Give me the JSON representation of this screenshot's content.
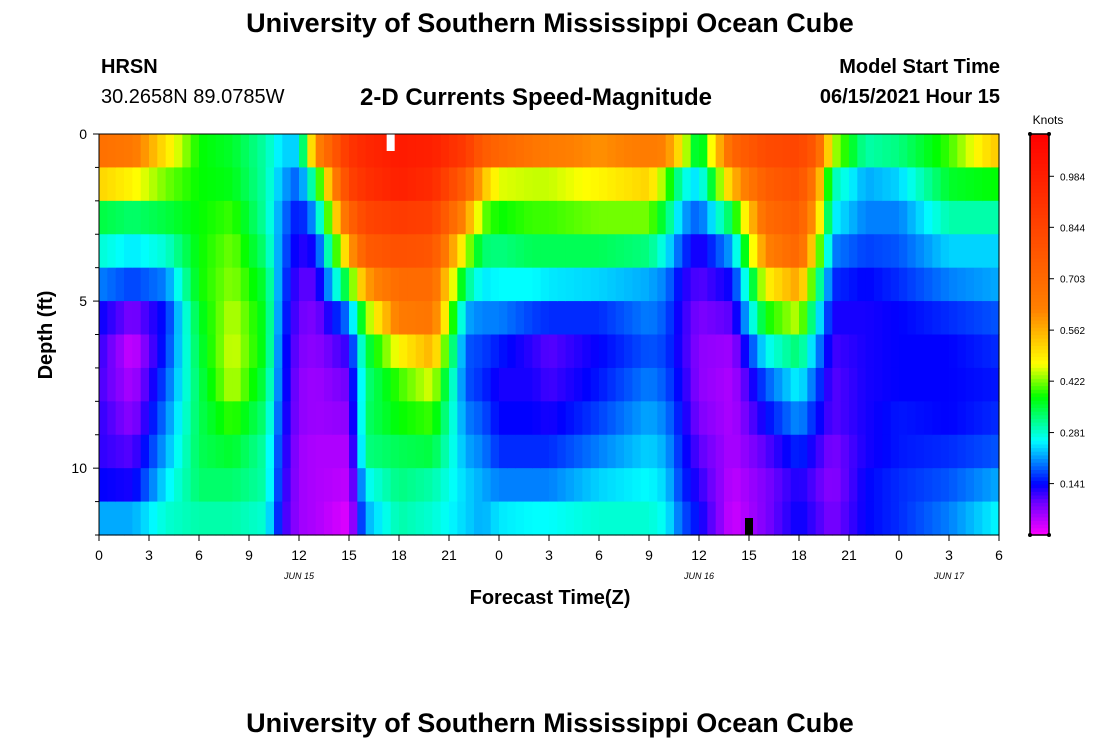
{
  "page": {
    "top_title": "University of Southern Mississippi Ocean Cube",
    "bottom_title": "University of Southern Mississippi Ocean Cube",
    "station": "HRSN",
    "coordinates": "30.2658N  89.0785W",
    "subtitle": "2-D Currents Speed-Magnitude",
    "model_start_label": "Model Start Time",
    "model_start_value": "06/15/2021 Hour 15"
  },
  "chart_data": {
    "type": "heatmap",
    "title": "2-D Currents Speed-Magnitude",
    "xlabel": "Forecast Time(Z)",
    "ylabel": "Depth (ft)",
    "x_hours": [
      0,
      54
    ],
    "x_tick_labels": [
      "0",
      "3",
      "6",
      "9",
      "12",
      "15",
      "18",
      "21",
      "0",
      "3",
      "6",
      "9",
      "12",
      "15",
      "18",
      "21",
      "0",
      "3",
      "6"
    ],
    "date_labels": [
      {
        "text": "JUN 15",
        "hour": 12
      },
      {
        "text": "JUN 16",
        "hour": 36
      },
      {
        "text": "JUN 17",
        "hour": 51
      }
    ],
    "ylim": [
      0,
      12
    ],
    "y_tick_labels": [
      {
        "value": 0,
        "label": "0"
      },
      {
        "value": 5,
        "label": "5"
      },
      {
        "value": 10,
        "label": "10"
      }
    ],
    "colorbar": {
      "unit": "Knots",
      "min": 0.0,
      "max": 1.1,
      "tick_values": [
        0.141,
        0.281,
        0.422,
        0.562,
        0.703,
        0.844,
        0.984
      ],
      "tick_labels": [
        "0.141",
        "0.281",
        "0.422",
        "0.562",
        "0.703",
        "0.844",
        "0.984"
      ]
    },
    "markers": [
      {
        "hour": 17.5,
        "position": "surface",
        "color": "#ffffff"
      },
      {
        "hour": 39,
        "position": "bottom",
        "color": "#000000"
      }
    ],
    "depths_ft": [
      0.5,
      1.5,
      2.5,
      3.5,
      4.5,
      5.5,
      6.5,
      7.5,
      8.5,
      9.5,
      10.5,
      11.5
    ],
    "profiles": [
      {
        "hour": 0,
        "speeds": [
          0.68,
          0.52,
          0.35,
          0.28,
          0.2,
          0.14,
          0.12,
          0.11,
          0.12,
          0.12,
          0.14,
          0.22
        ]
      },
      {
        "hour": 2,
        "speeds": [
          0.65,
          0.48,
          0.33,
          0.25,
          0.17,
          0.08,
          0.03,
          0.05,
          0.07,
          0.1,
          0.13,
          0.22
        ]
      },
      {
        "hour": 4,
        "speeds": [
          0.5,
          0.42,
          0.35,
          0.28,
          0.2,
          0.15,
          0.16,
          0.18,
          0.2,
          0.22,
          0.25,
          0.28
        ]
      },
      {
        "hour": 6,
        "speeds": [
          0.38,
          0.38,
          0.38,
          0.38,
          0.38,
          0.36,
          0.35,
          0.34,
          0.34,
          0.34,
          0.33,
          0.3
        ]
      },
      {
        "hour": 8,
        "speeds": [
          0.36,
          0.37,
          0.4,
          0.42,
          0.43,
          0.45,
          0.46,
          0.45,
          0.4,
          0.36,
          0.33,
          0.3
        ]
      },
      {
        "hour": 10,
        "speeds": [
          0.3,
          0.3,
          0.3,
          0.32,
          0.35,
          0.36,
          0.36,
          0.34,
          0.32,
          0.3,
          0.3,
          0.28
        ]
      },
      {
        "hour": 11,
        "speeds": [
          0.24,
          0.22,
          0.2,
          0.19,
          0.18,
          0.17,
          0.16,
          0.16,
          0.15,
          0.14,
          0.13,
          0.12
        ]
      },
      {
        "hour": 12,
        "speeds": [
          0.24,
          0.18,
          0.14,
          0.12,
          0.1,
          0.09,
          0.08,
          0.07,
          0.07,
          0.06,
          0.06,
          0.06
        ]
      },
      {
        "hour": 13,
        "speeds": [
          0.6,
          0.34,
          0.22,
          0.14,
          0.1,
          0.08,
          0.07,
          0.06,
          0.06,
          0.05,
          0.05,
          0.05
        ]
      },
      {
        "hour": 15,
        "speeds": [
          0.9,
          0.85,
          0.72,
          0.56,
          0.38,
          0.2,
          0.12,
          0.09,
          0.07,
          0.05,
          0.04,
          0.02
        ]
      },
      {
        "hour": 16,
        "speeds": [
          0.95,
          0.92,
          0.84,
          0.76,
          0.58,
          0.42,
          0.34,
          0.32,
          0.33,
          0.32,
          0.26,
          0.22
        ]
      },
      {
        "hour": 18,
        "speeds": [
          1.0,
          0.98,
          0.88,
          0.8,
          0.7,
          0.64,
          0.48,
          0.4,
          0.38,
          0.34,
          0.32,
          0.3
        ]
      },
      {
        "hour": 20,
        "speeds": [
          0.98,
          0.94,
          0.86,
          0.78,
          0.7,
          0.66,
          0.56,
          0.46,
          0.4,
          0.35,
          0.3,
          0.28
        ]
      },
      {
        "hour": 22,
        "speeds": [
          0.88,
          0.74,
          0.6,
          0.45,
          0.32,
          0.22,
          0.18,
          0.18,
          0.2,
          0.22,
          0.24,
          0.24
        ]
      },
      {
        "hour": 23,
        "speeds": [
          0.76,
          0.55,
          0.42,
          0.33,
          0.25,
          0.2,
          0.17,
          0.16,
          0.18,
          0.2,
          0.22,
          0.22
        ]
      },
      {
        "hour": 24,
        "speeds": [
          0.72,
          0.46,
          0.38,
          0.32,
          0.26,
          0.2,
          0.15,
          0.13,
          0.14,
          0.16,
          0.2,
          0.25
        ]
      },
      {
        "hour": 26,
        "speeds": [
          0.66,
          0.45,
          0.4,
          0.34,
          0.26,
          0.17,
          0.12,
          0.13,
          0.14,
          0.16,
          0.2,
          0.26
        ]
      },
      {
        "hour": 27,
        "speeds": [
          0.64,
          0.45,
          0.4,
          0.34,
          0.25,
          0.16,
          0.1,
          0.11,
          0.13,
          0.16,
          0.2,
          0.26
        ]
      },
      {
        "hour": 30,
        "speeds": [
          0.6,
          0.48,
          0.42,
          0.34,
          0.24,
          0.16,
          0.14,
          0.15,
          0.17,
          0.2,
          0.24,
          0.28
        ]
      },
      {
        "hour": 33,
        "speeds": [
          0.64,
          0.52,
          0.42,
          0.32,
          0.22,
          0.2,
          0.18,
          0.2,
          0.22,
          0.24,
          0.26,
          0.28
        ]
      },
      {
        "hour": 34,
        "speeds": [
          0.62,
          0.42,
          0.34,
          0.26,
          0.2,
          0.18,
          0.17,
          0.18,
          0.2,
          0.22,
          0.24,
          0.26
        ]
      },
      {
        "hour": 35,
        "speeds": [
          0.48,
          0.28,
          0.22,
          0.17,
          0.13,
          0.12,
          0.12,
          0.13,
          0.14,
          0.15,
          0.16,
          0.18
        ]
      },
      {
        "hour": 36,
        "speeds": [
          0.32,
          0.24,
          0.18,
          0.12,
          0.1,
          0.08,
          0.07,
          0.07,
          0.08,
          0.1,
          0.12,
          0.14
        ]
      },
      {
        "hour": 38,
        "speeds": [
          0.72,
          0.55,
          0.35,
          0.22,
          0.14,
          0.1,
          0.06,
          0.05,
          0.05,
          0.05,
          0.04,
          0.03
        ]
      },
      {
        "hour": 40,
        "speeds": [
          0.82,
          0.75,
          0.7,
          0.62,
          0.48,
          0.38,
          0.26,
          0.18,
          0.14,
          0.1,
          0.08,
          0.08
        ]
      },
      {
        "hour": 42,
        "speeds": [
          0.84,
          0.8,
          0.76,
          0.72,
          0.58,
          0.45,
          0.33,
          0.26,
          0.21,
          0.16,
          0.13,
          0.14
        ]
      },
      {
        "hour": 43,
        "speeds": [
          0.76,
          0.64,
          0.56,
          0.48,
          0.36,
          0.28,
          0.22,
          0.18,
          0.15,
          0.12,
          0.1,
          0.11
        ]
      },
      {
        "hour": 44,
        "speeds": [
          0.45,
          0.3,
          0.26,
          0.2,
          0.16,
          0.13,
          0.11,
          0.1,
          0.1,
          0.08,
          0.07,
          0.08
        ]
      },
      {
        "hour": 46,
        "speeds": [
          0.3,
          0.22,
          0.2,
          0.17,
          0.14,
          0.13,
          0.13,
          0.13,
          0.13,
          0.13,
          0.14,
          0.14
        ]
      },
      {
        "hour": 48,
        "speeds": [
          0.32,
          0.24,
          0.2,
          0.18,
          0.16,
          0.14,
          0.14,
          0.14,
          0.15,
          0.15,
          0.16,
          0.16
        ]
      },
      {
        "hour": 51,
        "speeds": [
          0.4,
          0.36,
          0.3,
          0.24,
          0.2,
          0.16,
          0.14,
          0.14,
          0.14,
          0.16,
          0.18,
          0.2
        ]
      },
      {
        "hour": 54,
        "speeds": [
          0.54,
          0.38,
          0.3,
          0.24,
          0.22,
          0.18,
          0.16,
          0.15,
          0.16,
          0.18,
          0.22,
          0.26
        ]
      }
    ]
  }
}
